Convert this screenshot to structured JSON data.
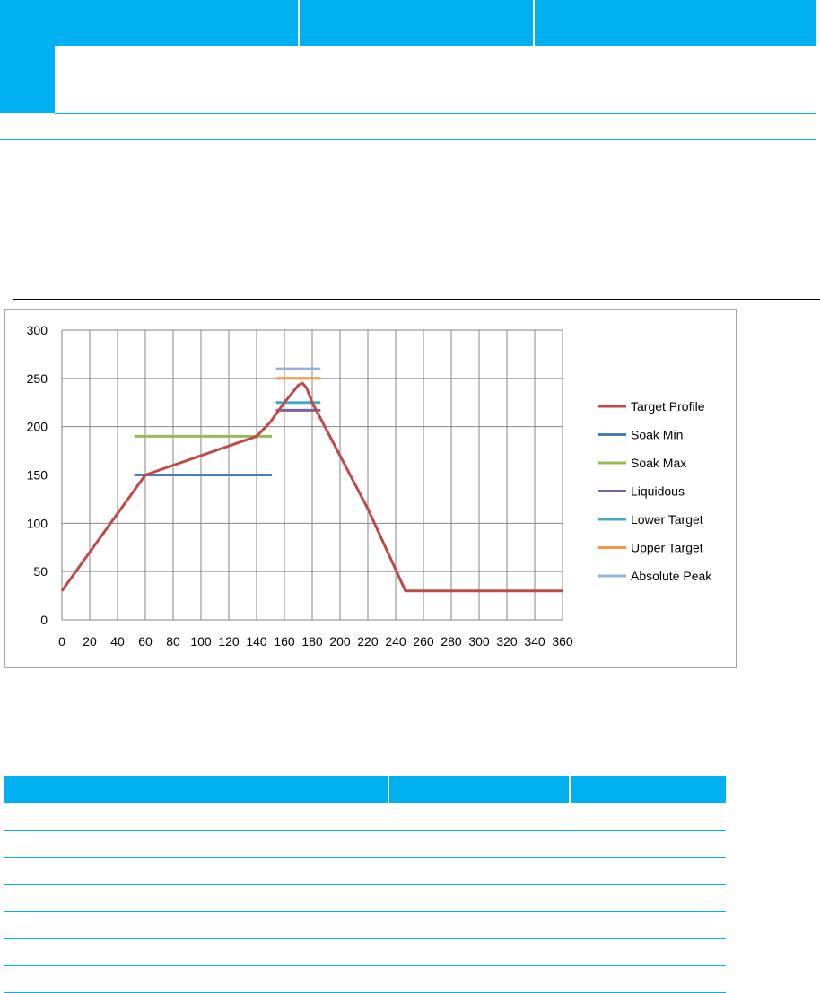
{
  "chart_data": {
    "type": "line",
    "xlim": [
      0,
      360
    ],
    "ylim": [
      0,
      300
    ],
    "x_ticks": [
      "0",
      "20",
      "40",
      "60",
      "80",
      "100",
      "120",
      "140",
      "160",
      "180",
      "200",
      "220",
      "240",
      "260",
      "280",
      "300",
      "320",
      "340",
      "360"
    ],
    "y_ticks": [
      "0",
      "50",
      "100",
      "150",
      "200",
      "250",
      "300"
    ],
    "grid": true,
    "legend_position": "right",
    "series": [
      {
        "name": "Target Profile",
        "color": "#be4b48",
        "points": [
          [
            0,
            30
          ],
          [
            60,
            150
          ],
          [
            140,
            190
          ],
          [
            150,
            205
          ],
          [
            160,
            225
          ],
          [
            170,
            243
          ],
          [
            173,
            245
          ],
          [
            176,
            240
          ],
          [
            180,
            225
          ],
          [
            200,
            170
          ],
          [
            220,
            115
          ],
          [
            247,
            30
          ],
          [
            360,
            30
          ]
        ]
      },
      {
        "name": "Soak Min",
        "color": "#4a7ebb",
        "points": [
          [
            52,
            150
          ],
          [
            151,
            150
          ]
        ]
      },
      {
        "name": "Soak Max",
        "color": "#98b954",
        "points": [
          [
            52,
            190
          ],
          [
            151,
            190
          ]
        ]
      },
      {
        "name": "Liquidous",
        "color": "#7d60a0",
        "points": [
          [
            154,
            217
          ],
          [
            186,
            217
          ]
        ]
      },
      {
        "name": "Lower Target",
        "color": "#46aac5",
        "points": [
          [
            154,
            225
          ],
          [
            186,
            225
          ]
        ]
      },
      {
        "name": "Upper Target",
        "color": "#f79646",
        "points": [
          [
            154,
            250
          ],
          [
            186,
            250
          ]
        ]
      },
      {
        "name": "Absolute Peak",
        "color": "#95b3d7",
        "points": [
          [
            154,
            260
          ],
          [
            186,
            260
          ]
        ]
      }
    ]
  }
}
